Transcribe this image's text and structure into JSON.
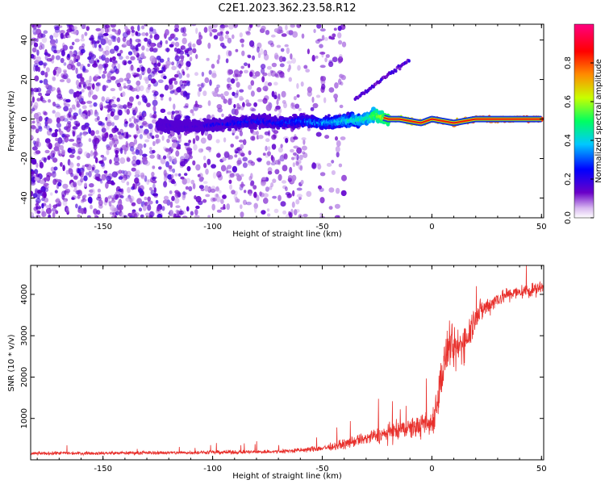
{
  "title": "C2E1.2023.362.23.58.R12",
  "colors": {
    "snr_line": "#e8302c",
    "spectrum_point": "#7a1fe0",
    "axis": "#000000"
  },
  "chart_data": [
    {
      "type": "heatmap",
      "title": "C2E1.2023.362.23.58.R12",
      "xlabel": "Height of straight line (km)",
      "ylabel": "Frequency (Hz)",
      "xlim": [
        -183,
        51
      ],
      "ylim": [
        -50,
        48
      ],
      "xticks": [
        -150,
        -100,
        -50,
        0,
        50
      ],
      "yticks": [
        -40,
        -20,
        0,
        20,
        40
      ],
      "xtick_labels": [
        "-150",
        "-100",
        "-50",
        "0",
        "50"
      ],
      "ytick_labels": [
        "-40",
        "-20",
        "0",
        "20",
        "40"
      ],
      "ridge": {
        "description": "dominant spectral ridge (frequency peak)",
        "x": [
          -125,
          -110,
          -100,
          -90,
          -80,
          -70,
          -60,
          -50,
          -40,
          -30,
          -26,
          -20,
          -15,
          -10,
          -5,
          0,
          5,
          10,
          15,
          20,
          30,
          40,
          50
        ],
        "y": [
          -3,
          -4,
          -3,
          -2,
          -1,
          -2,
          -1,
          -2,
          -1,
          0,
          2,
          0,
          0,
          -1,
          -2,
          0,
          -1,
          -2,
          -1,
          0,
          0,
          0,
          0
        ],
        "amplitude": [
          0.2,
          0.2,
          0.25,
          0.3,
          0.3,
          0.3,
          0.35,
          0.4,
          0.45,
          0.5,
          0.6,
          0.65,
          0.7,
          0.75,
          0.8,
          0.85,
          0.85,
          0.85,
          0.85,
          0.9,
          0.9,
          0.9,
          0.9
        ]
      },
      "side_branch": {
        "description": "weak rising branch",
        "x": [
          -35,
          -25,
          -15,
          -10
        ],
        "y": [
          10,
          18,
          26,
          30
        ]
      },
      "noise_floor_amplitude": 0.12
    },
    {
      "type": "colorbar",
      "label": "Normalized spectral amplitude",
      "range": [
        0,
        1
      ],
      "ticks": [
        0.0,
        0.2,
        0.4,
        0.6,
        0.8
      ],
      "tick_labels": [
        "0.0",
        "0.2",
        "0.4",
        "0.6",
        "0.8"
      ],
      "colormap": [
        "#ffffff",
        "#6a00c8",
        "#0000ff",
        "#00c8ff",
        "#00ff60",
        "#c8ff00",
        "#ff8c00",
        "#ff0000",
        "#ff0080"
      ]
    },
    {
      "type": "line",
      "title": "",
      "xlabel": "Height of straight line (km)",
      "ylabel": "SNR (10 * v/v)",
      "xlim": [
        -183,
        51
      ],
      "ylim": [
        0,
        4700
      ],
      "xticks": [
        -150,
        -100,
        -50,
        0,
        50
      ],
      "yticks": [
        1000,
        2000,
        3000,
        4000
      ],
      "xtick_labels": [
        "-150",
        "-100",
        "-50",
        "0",
        "50"
      ],
      "ytick_labels": [
        "1000",
        "2000",
        "3000",
        "4000"
      ],
      "series": [
        {
          "name": "SNR",
          "x": [
            -183,
            -170,
            -160,
            -150,
            -140,
            -130,
            -120,
            -110,
            -100,
            -90,
            -80,
            -70,
            -60,
            -50,
            -45,
            -40,
            -35,
            -30,
            -25,
            -20,
            -15,
            -10,
            -5,
            -2,
            0,
            2,
            4,
            6,
            8,
            10,
            12,
            15,
            18,
            20,
            25,
            30,
            35,
            40,
            45,
            50
          ],
          "y": [
            150,
            160,
            160,
            160,
            165,
            170,
            170,
            175,
            180,
            185,
            190,
            200,
            230,
            280,
            320,
            380,
            450,
            520,
            580,
            640,
            700,
            760,
            820,
            860,
            900,
            1300,
            1900,
            2400,
            2800,
            2600,
            2700,
            2900,
            3200,
            3500,
            3700,
            3900,
            4000,
            4050,
            4100,
            4150
          ],
          "noise_spread": [
            60,
            60,
            60,
            60,
            60,
            60,
            60,
            60,
            70,
            70,
            70,
            80,
            90,
            110,
            130,
            160,
            200,
            240,
            280,
            320,
            350,
            380,
            420,
            450,
            500,
            700,
            800,
            800,
            800,
            800,
            800,
            700,
            600,
            500,
            350,
            300,
            280,
            250,
            250,
            250
          ]
        }
      ]
    }
  ]
}
